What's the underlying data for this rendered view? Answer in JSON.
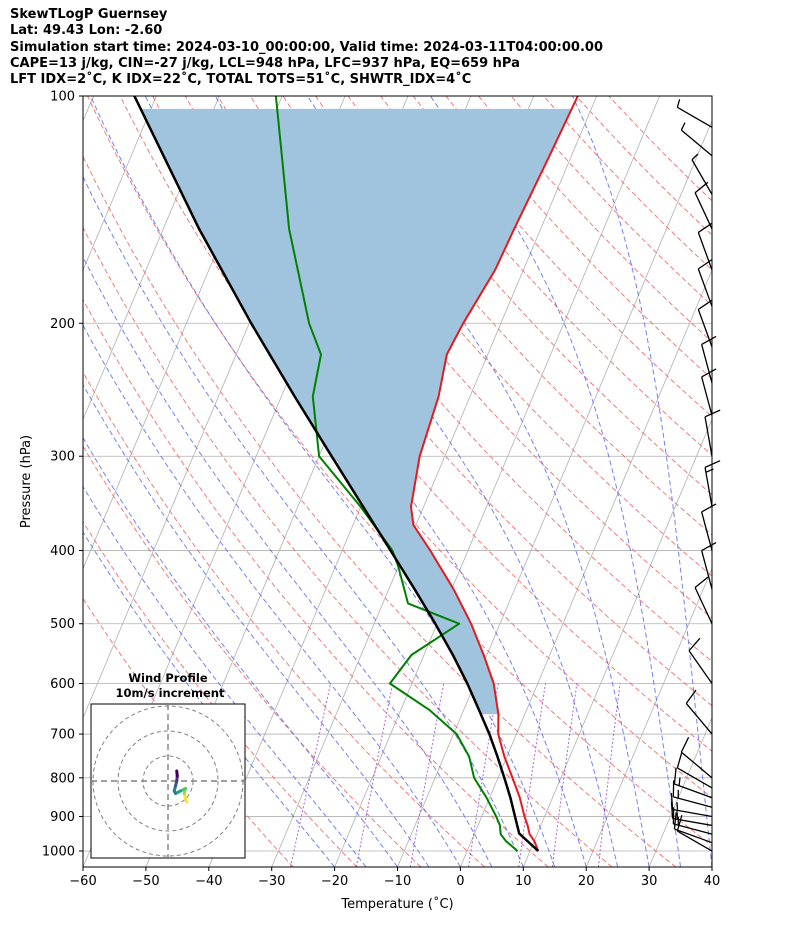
{
  "header": {
    "line1": "SkewTLogP Guernsey",
    "line2": "Lat: 49.43   Lon: -2.60",
    "line3": "Simulation start time: 2024-03-10_00:00:00, Valid time: 2024-03-11T04:00:00.00",
    "line4": "CAPE=13 j/kg, CIN=-27 j/kg, LCL=948 hPa, LFC=937 hPa, EQ=659 hPa",
    "line5": "LFT IDX=2˚C, K IDX=22˚C, TOTAL TOTS=51˚C, SHWTR_IDX=4˚C"
  },
  "colors": {
    "temperature": "#e41a1c",
    "dewpoint": "#008000",
    "parcel": "#000000",
    "cape_fill": "#a1c4de",
    "dry_adiabat": "#f26d6d",
    "moist_adiabat": "#5a6cf0",
    "mixing_ratio": "#9b3fcf",
    "isotherm": "#b0b0b0"
  },
  "chart_data": {
    "type": "skew-t",
    "title": "SkewTLogP Guernsey",
    "xlabel": "Temperature (˚C)",
    "ylabel": "Pressure (hPa)",
    "xlim": [
      -60,
      40
    ],
    "ylim": [
      1050,
      100
    ],
    "xticks": [
      -60,
      -50,
      -40,
      -30,
      -20,
      -10,
      0,
      10,
      20,
      30,
      40
    ],
    "yticks": [
      1000,
      900,
      800,
      700,
      600,
      500,
      400,
      300,
      200,
      100
    ],
    "temperature_profile": [
      {
        "p": 1000,
        "t": 11.3
      },
      {
        "p": 970,
        "t": 10.0
      },
      {
        "p": 950,
        "t": 8.8
      },
      {
        "p": 925,
        "t": 7.9
      },
      {
        "p": 900,
        "t": 6.8
      },
      {
        "p": 850,
        "t": 4.8
      },
      {
        "p": 800,
        "t": 2.3
      },
      {
        "p": 750,
        "t": -0.4
      },
      {
        "p": 700,
        "t": -2.9
      },
      {
        "p": 659,
        "t": -4.2
      },
      {
        "p": 600,
        "t": -7.0
      },
      {
        "p": 550,
        "t": -10.5
      },
      {
        "p": 500,
        "t": -14.6
      },
      {
        "p": 450,
        "t": -19.7
      },
      {
        "p": 400,
        "t": -26.0
      },
      {
        "p": 370,
        "t": -30.4
      },
      {
        "p": 350,
        "t": -32.0
      },
      {
        "p": 300,
        "t": -34.0
      },
      {
        "p": 250,
        "t": -35.0
      },
      {
        "p": 220,
        "t": -36.5
      },
      {
        "p": 200,
        "t": -36.0
      },
      {
        "p": 170,
        "t": -34.5
      },
      {
        "p": 150,
        "t": -34.2
      },
      {
        "p": 120,
        "t": -33.5
      },
      {
        "p": 100,
        "t": -33.0
      }
    ],
    "dewpoint_profile": [
      {
        "p": 1000,
        "t": 8.0
      },
      {
        "p": 970,
        "t": 5.5
      },
      {
        "p": 950,
        "t": 4.2
      },
      {
        "p": 925,
        "t": 3.5
      },
      {
        "p": 900,
        "t": 2.3
      },
      {
        "p": 850,
        "t": -0.5
      },
      {
        "p": 800,
        "t": -3.8
      },
      {
        "p": 750,
        "t": -6.0
      },
      {
        "p": 700,
        "t": -9.5
      },
      {
        "p": 650,
        "t": -15.5
      },
      {
        "p": 600,
        "t": -23.5
      },
      {
        "p": 550,
        "t": -22.0
      },
      {
        "p": 500,
        "t": -16.5
      },
      {
        "p": 470,
        "t": -26.0
      },
      {
        "p": 420,
        "t": -30.0
      },
      {
        "p": 400,
        "t": -32.0
      },
      {
        "p": 350,
        "t": -40.0
      },
      {
        "p": 300,
        "t": -50.0
      },
      {
        "p": 250,
        "t": -55.0
      },
      {
        "p": 220,
        "t": -56.5
      },
      {
        "p": 200,
        "t": -60.5
      },
      {
        "p": 150,
        "t": -70.0
      },
      {
        "p": 100,
        "t": -81.0
      }
    ],
    "parcel_profile": [
      {
        "p": 1000,
        "t": 11.3
      },
      {
        "p": 948,
        "t": 7.1
      },
      {
        "p": 900,
        "t": 5.3
      },
      {
        "p": 850,
        "t": 3.3
      },
      {
        "p": 800,
        "t": 1.0
      },
      {
        "p": 750,
        "t": -1.5
      },
      {
        "p": 700,
        "t": -4.3
      },
      {
        "p": 650,
        "t": -7.6
      },
      {
        "p": 600,
        "t": -11.2
      },
      {
        "p": 550,
        "t": -15.4
      },
      {
        "p": 500,
        "t": -20.3
      },
      {
        "p": 450,
        "t": -25.9
      },
      {
        "p": 400,
        "t": -32.3
      },
      {
        "p": 350,
        "t": -39.6
      },
      {
        "p": 300,
        "t": -48.0
      },
      {
        "p": 250,
        "t": -57.9
      },
      {
        "p": 200,
        "t": -69.7
      },
      {
        "p": 150,
        "t": -84.3
      },
      {
        "p": 100,
        "t": -103.5
      }
    ],
    "cape_region": {
      "from_p": 659,
      "to_p": 100
    },
    "wind_barbs": [
      {
        "p": 1000,
        "dir": 300,
        "speed": 14
      },
      {
        "p": 975,
        "dir": 290,
        "speed": 14
      },
      {
        "p": 950,
        "dir": 285,
        "speed": 15
      },
      {
        "p": 925,
        "dir": 280,
        "speed": 16
      },
      {
        "p": 900,
        "dir": 280,
        "speed": 16
      },
      {
        "p": 875,
        "dir": 285,
        "speed": 16
      },
      {
        "p": 850,
        "dir": 290,
        "speed": 15
      },
      {
        "p": 825,
        "dir": 300,
        "speed": 13
      },
      {
        "p": 800,
        "dir": 310,
        "speed": 10
      },
      {
        "p": 700,
        "dir": 320,
        "speed": 12
      },
      {
        "p": 600,
        "dir": 325,
        "speed": 12
      },
      {
        "p": 500,
        "dir": 335,
        "speed": 12
      },
      {
        "p": 450,
        "dir": 345,
        "speed": 14
      },
      {
        "p": 400,
        "dir": 345,
        "speed": 14
      },
      {
        "p": 350,
        "dir": 350,
        "speed": 15
      },
      {
        "p": 300,
        "dir": 350,
        "speed": 14
      },
      {
        "p": 265,
        "dir": 345,
        "speed": 12
      },
      {
        "p": 240,
        "dir": 345,
        "speed": 11
      },
      {
        "p": 215,
        "dir": 340,
        "speed": 11
      },
      {
        "p": 190,
        "dir": 340,
        "speed": 11
      },
      {
        "p": 170,
        "dir": 340,
        "speed": 11
      },
      {
        "p": 150,
        "dir": 335,
        "speed": 10
      },
      {
        "p": 135,
        "dir": 330,
        "speed": 9
      },
      {
        "p": 120,
        "dir": 310,
        "speed": 9
      },
      {
        "p": 110,
        "dir": 300,
        "speed": 9
      }
    ],
    "hodograph": {
      "title": "Wind Profile",
      "subtitle": "10m/s increment",
      "rings_ms": [
        10,
        20,
        30
      ],
      "points": [
        {
          "u": 3.5,
          "v": -8.5
        },
        {
          "u": 3.0,
          "v": -7.0
        },
        {
          "u": 2.5,
          "v": -5.0
        },
        {
          "u": 3.0,
          "v": -3.0
        },
        {
          "u": 1.0,
          "v": -4.0
        },
        {
          "u": -1.0,
          "v": -5.0
        },
        {
          "u": -1.5,
          "v": -4.0
        },
        {
          "u": -1.0,
          "v": -2.0
        },
        {
          "u": -0.5,
          "v": 0.0
        },
        {
          "u": -0.3,
          "v": 2.0
        },
        {
          "u": -0.5,
          "v": 4.0
        }
      ]
    }
  }
}
